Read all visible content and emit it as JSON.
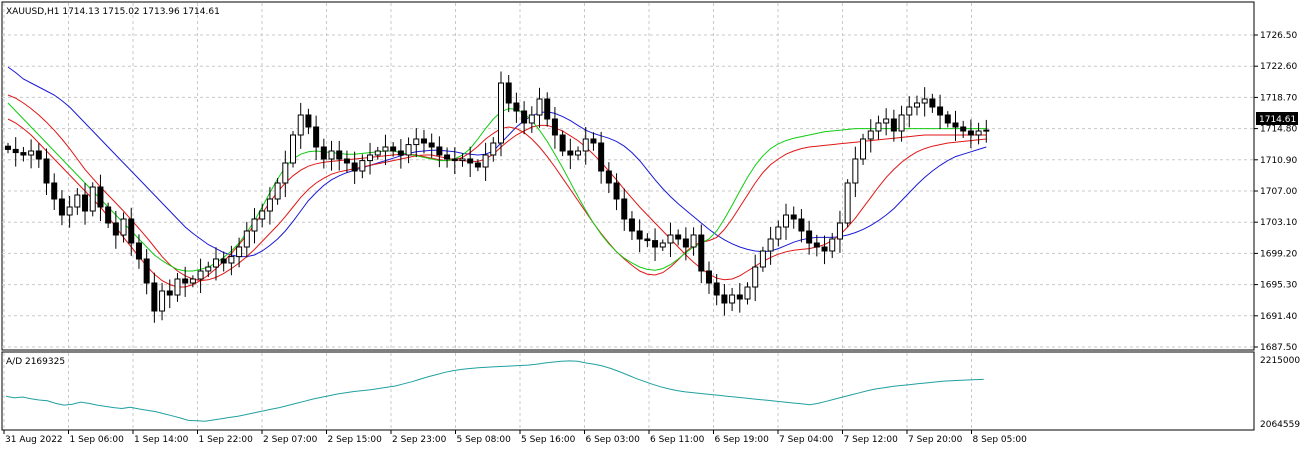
{
  "header": {
    "symbol_info": "XAUUSD,H1  1714.13 1715.02 1713.96 1714.61"
  },
  "indicator": {
    "label": "A/D 2169325"
  },
  "colors": {
    "background": "#ffffff",
    "grid": "#c8c8c8",
    "axis": "#000000",
    "candle": "#000000",
    "ma_blue": "#1a1ad6",
    "ma_red": "#e01616",
    "ma_green": "#11cc11",
    "ad_line": "#20a0a0",
    "price_label_bg": "#000000",
    "price_label_text": "#ffffff"
  },
  "chart_data": [
    {
      "type": "candlestick",
      "title": "XAUUSD,H1",
      "ylim": [
        1687.5,
        1728.5
      ],
      "y_ticks": [
        "1726.50",
        "1722.60",
        "1718.70",
        "1714.80",
        "1710.90",
        "1707.00",
        "1703.10",
        "1699.20",
        "1695.30",
        "1691.40",
        "1687.50"
      ],
      "current_price": "1714.61",
      "x_tick_labels": [
        "31 Aug 2022",
        "1 Sep 06:00",
        "1 Sep 14:00",
        "1 Sep 22:00",
        "2 Sep 07:00",
        "2 Sep 15:00",
        "2 Sep 23:00",
        "5 Sep 08:00",
        "5 Sep 16:00",
        "6 Sep 03:00",
        "6 Sep 11:00",
        "6 Sep 19:00",
        "7 Sep 04:00",
        "7 Sep 12:00",
        "7 Sep 20:00",
        "8 Sep 05:00"
      ],
      "close_path": [
        1712.2,
        1711.8,
        1711.5,
        1712.0,
        1711.0,
        1708.0,
        1706.0,
        1704.0,
        1705.0,
        1706.5,
        1704.5,
        1707.5,
        1705.0,
        1703.0,
        1701.5,
        1703.5,
        1700.5,
        1698.5,
        1695.5,
        1692.0,
        1694.5,
        1694.0,
        1696.0,
        1695.5,
        1696.0,
        1697.0,
        1697.5,
        1698.5,
        1698.0,
        1698.8,
        1700.0,
        1702.0,
        1703.5,
        1704.5,
        1706.0,
        1708.0,
        1710.5,
        1714.0,
        1716.5,
        1715.0,
        1712.5,
        1711.0,
        1712.0,
        1711.0,
        1710.5,
        1709.5,
        1710.8,
        1711.5,
        1712.0,
        1712.5,
        1712.0,
        1711.5,
        1712.8,
        1713.5,
        1713.0,
        1712.5,
        1711.5,
        1711.0,
        1710.8,
        1711.0,
        1710.5,
        1710.0,
        1711.5,
        1713.0,
        1720.5,
        1718.0,
        1717.0,
        1715.5,
        1716.5,
        1718.5,
        1716.0,
        1714.0,
        1712.0,
        1711.5,
        1712.0,
        1713.5,
        1713.0,
        1709.5,
        1708.0,
        1706.0,
        1703.5,
        1702.0,
        1701.0,
        1700.8,
        1700.0,
        1700.5,
        1701.5,
        1701.0,
        1700.0,
        1701.5,
        1697.0,
        1695.5,
        1694.0,
        1693.0,
        1694.0,
        1693.5,
        1695.0,
        1697.5,
        1699.5,
        1701.0,
        1702.5,
        1704.0,
        1703.5,
        1702.0,
        1700.5,
        1700.0,
        1699.5,
        1701.0,
        1703.0,
        1708.0,
        1711.0,
        1713.5,
        1714.5,
        1715.5,
        1716.0,
        1714.5,
        1716.5,
        1717.5,
        1718.0,
        1718.5,
        1717.5,
        1716.5,
        1715.5,
        1715.0,
        1714.5,
        1714.0,
        1714.5,
        1714.61
      ],
      "series": [
        {
          "name": "",
          "color": "#1a1ad6",
          "values": [
            1722.5,
            1721.8,
            1721.0,
            1720.5,
            1720.0,
            1719.5,
            1719.0,
            1718.3,
            1717.5,
            1716.5,
            1715.5,
            1714.5,
            1713.5,
            1712.5,
            1711.5,
            1710.5,
            1709.5,
            1708.5,
            1707.5,
            1706.5,
            1705.5,
            1704.5,
            1703.5,
            1702.5,
            1701.7,
            1701.0,
            1700.3,
            1699.8,
            1699.3,
            1699.0,
            1698.8,
            1698.8,
            1699.0,
            1699.5,
            1700.2,
            1701.0,
            1702.0,
            1703.2,
            1704.5,
            1705.8,
            1706.8,
            1707.7,
            1708.4,
            1708.9,
            1709.3,
            1709.6,
            1709.9,
            1710.2,
            1710.5,
            1710.8,
            1711.1,
            1711.4,
            1711.7,
            1711.9,
            1712.0,
            1712.1,
            1712.1,
            1712.0,
            1711.9,
            1711.7,
            1711.6,
            1711.5,
            1711.6,
            1712.0,
            1713.0,
            1714.0,
            1715.0,
            1715.8,
            1716.4,
            1716.8,
            1716.9,
            1716.7,
            1716.3,
            1715.8,
            1715.2,
            1714.6,
            1714.2,
            1713.9,
            1713.6,
            1713.2,
            1712.6,
            1711.8,
            1710.8,
            1709.6,
            1708.4,
            1707.3,
            1706.3,
            1705.4,
            1704.6,
            1703.8,
            1703.0,
            1702.2,
            1701.5,
            1700.9,
            1700.4,
            1700.0,
            1699.7,
            1699.5,
            1699.4,
            1699.5,
            1699.8,
            1700.2,
            1700.6,
            1700.9,
            1701.1,
            1701.2,
            1701.2,
            1701.2,
            1701.3,
            1701.5,
            1701.8,
            1702.2,
            1702.7,
            1703.3,
            1704.0,
            1704.8,
            1705.8,
            1706.8,
            1707.8,
            1708.7,
            1709.5,
            1710.2,
            1710.8,
            1711.3,
            1711.6,
            1711.9,
            1712.2,
            1712.5
          ]
        },
        {
          "name": "",
          "color": "#e01616",
          "values": [
            1719.0,
            1718.6,
            1718.0,
            1717.3,
            1716.5,
            1715.6,
            1714.6,
            1713.5,
            1712.3,
            1711.0,
            1709.7,
            1708.6,
            1707.5,
            1706.5,
            1705.5,
            1704.5,
            1703.4,
            1702.3,
            1701.2,
            1700.0,
            1698.8,
            1697.8,
            1697.0,
            1696.4,
            1696.0,
            1695.8,
            1695.9,
            1696.2,
            1696.7,
            1697.3,
            1698.0,
            1698.8,
            1699.7,
            1700.7,
            1701.7,
            1702.7,
            1703.8,
            1705.0,
            1706.2,
            1707.2,
            1708.0,
            1708.6,
            1709.1,
            1709.4,
            1709.6,
            1709.8,
            1710.0,
            1710.2,
            1710.4,
            1710.6,
            1710.8,
            1711.0,
            1711.2,
            1711.4,
            1711.5,
            1711.5,
            1711.3,
            1711.1,
            1710.9,
            1710.8,
            1710.7,
            1710.7,
            1711.0,
            1711.6,
            1712.5,
            1713.3,
            1714.0,
            1714.5,
            1715.0,
            1715.2,
            1715.2,
            1714.9,
            1714.5,
            1713.9,
            1713.3,
            1712.5,
            1711.6,
            1710.6,
            1709.5,
            1708.4,
            1707.2,
            1706.1,
            1705.0,
            1704.0,
            1703.0,
            1702.0,
            1701.0,
            1700.0,
            1699.0,
            1698.1,
            1697.3,
            1696.6,
            1696.1,
            1695.9,
            1696.0,
            1696.4,
            1697.0,
            1697.6,
            1698.2,
            1698.7,
            1699.1,
            1699.4,
            1699.6,
            1699.7,
            1699.8,
            1700.0,
            1700.3,
            1700.8,
            1701.5,
            1702.5,
            1703.6,
            1704.9,
            1706.2,
            1707.5,
            1708.7,
            1709.7,
            1710.6,
            1711.3,
            1711.9,
            1712.3,
            1712.6,
            1712.8,
            1713.0,
            1713.1,
            1713.2,
            1713.3,
            1713.4,
            1713.5
          ]
        },
        {
          "name": "",
          "color": "#e01616",
          "values": [
            1716.0,
            1715.5,
            1714.8,
            1714.0,
            1713.0,
            1712.0,
            1711.0,
            1710.0,
            1709.0,
            1708.0,
            1707.0,
            1706.0,
            1705.0,
            1703.8,
            1702.5,
            1701.2,
            1700.0,
            1698.8,
            1697.6,
            1696.6,
            1695.8,
            1695.3,
            1695.0,
            1695.0,
            1695.3,
            1695.8,
            1696.5,
            1697.3,
            1698.2,
            1699.2,
            1700.3,
            1701.5,
            1702.8,
            1704.2,
            1705.6,
            1706.9,
            1708.0,
            1708.9,
            1709.6,
            1710.1,
            1710.4,
            1710.6,
            1710.7,
            1710.8,
            1710.9,
            1711.0,
            1711.1,
            1711.2,
            1711.3,
            1711.4,
            1711.5,
            1711.6,
            1711.6,
            1711.5,
            1711.3,
            1711.1,
            1710.9,
            1710.8,
            1710.9,
            1711.2,
            1711.8,
            1712.6,
            1713.5,
            1714.2,
            1714.8,
            1715.0,
            1714.8,
            1714.3,
            1713.5,
            1712.5,
            1711.3,
            1710.0,
            1708.6,
            1707.2,
            1705.8,
            1704.4,
            1703.0,
            1701.7,
            1700.5,
            1699.4,
            1698.5,
            1697.7,
            1697.0,
            1696.6,
            1696.5,
            1696.8,
            1697.5,
            1698.4,
            1699.4,
            1700.2,
            1700.6,
            1700.8,
            1701.2,
            1702.2,
            1703.5,
            1705.0,
            1706.5,
            1708.0,
            1709.3,
            1710.3,
            1711.0,
            1711.6,
            1712.0,
            1712.3,
            1712.5,
            1712.6,
            1712.7,
            1712.8,
            1712.9,
            1713.0,
            1713.1,
            1713.2,
            1713.3,
            1713.4,
            1713.5,
            1713.6,
            1713.7,
            1713.8,
            1713.9,
            1714.0,
            1714.0,
            1714.0,
            1714.0,
            1714.0,
            1714.0,
            1714.0,
            1714.0,
            1714.0
          ]
        },
        {
          "name": "",
          "color": "#11cc11",
          "values": [
            1718.0,
            1717.0,
            1716.0,
            1715.0,
            1714.0,
            1713.0,
            1712.0,
            1711.0,
            1710.0,
            1709.0,
            1708.0,
            1707.0,
            1706.0,
            1705.0,
            1704.0,
            1703.0,
            1702.0,
            1701.0,
            1700.0,
            1699.0,
            1698.3,
            1697.7,
            1697.2,
            1697.0,
            1697.0,
            1697.2,
            1697.5,
            1698.0,
            1698.7,
            1699.5,
            1700.5,
            1701.8,
            1703.3,
            1705.0,
            1706.8,
            1708.5,
            1710.0,
            1711.0,
            1711.6,
            1711.9,
            1712.0,
            1711.9,
            1711.8,
            1711.7,
            1711.6,
            1711.6,
            1711.7,
            1711.8,
            1711.9,
            1712.0,
            1712.0,
            1711.8,
            1711.6,
            1711.4,
            1711.2,
            1711.0,
            1710.8,
            1710.8,
            1711.0,
            1711.5,
            1712.3,
            1713.5,
            1714.8,
            1716.0,
            1716.9,
            1717.3,
            1717.2,
            1716.7,
            1715.8,
            1714.6,
            1713.2,
            1711.6,
            1709.9,
            1708.1,
            1706.3,
            1704.6,
            1703.0,
            1701.6,
            1700.4,
            1699.4,
            1698.6,
            1698.0,
            1697.5,
            1697.2,
            1697.1,
            1697.3,
            1697.8,
            1698.5,
            1699.3,
            1700.0,
            1700.5,
            1701.0,
            1702.0,
            1703.5,
            1705.2,
            1707.0,
            1708.7,
            1710.2,
            1711.4,
            1712.3,
            1712.9,
            1713.3,
            1713.6,
            1713.8,
            1714.0,
            1714.2,
            1714.4,
            1714.5,
            1714.6,
            1714.7,
            1714.8,
            1714.8,
            1714.8,
            1714.8,
            1714.8,
            1714.8,
            1714.8,
            1714.8,
            1714.8,
            1714.8,
            1714.8,
            1714.8,
            1714.8,
            1714.8,
            1714.8,
            1714.8,
            1714.8,
            1714.8
          ]
        }
      ]
    },
    {
      "type": "line",
      "title": "A/D 2169325",
      "ylim": [
        2064559,
        2215000
      ],
      "y_ticks": [
        "2215000",
        "2064559"
      ],
      "series": [
        {
          "name": "A/D",
          "color": "#20a0a0",
          "values": [
            2130000,
            2126000,
            2128000,
            2124000,
            2121000,
            2119000,
            2113000,
            2109000,
            2111000,
            2116000,
            2113000,
            2109000,
            2106000,
            2103000,
            2101000,
            2104000,
            2100000,
            2097000,
            2094000,
            2089000,
            2084000,
            2079000,
            2073000,
            2072000,
            2071000,
            2074000,
            2077000,
            2080000,
            2083000,
            2087000,
            2091000,
            2095000,
            2099000,
            2103000,
            2108000,
            2113000,
            2118000,
            2123000,
            2127000,
            2131000,
            2135000,
            2138000,
            2141000,
            2143000,
            2145000,
            2148000,
            2151000,
            2154000,
            2159000,
            2164000,
            2170000,
            2176000,
            2181000,
            2186000,
            2190000,
            2193000,
            2195000,
            2197000,
            2198000,
            2199000,
            2200000,
            2201000,
            2202000,
            2203000,
            2205000,
            2208000,
            2210000,
            2212000,
            2213000,
            2212000,
            2208000,
            2205000,
            2201000,
            2195000,
            2188000,
            2180000,
            2172000,
            2165000,
            2158000,
            2152000,
            2147000,
            2143000,
            2140000,
            2138000,
            2136000,
            2134000,
            2132000,
            2130000,
            2128000,
            2126000,
            2124000,
            2122000,
            2120000,
            2118000,
            2116000,
            2114000,
            2112000,
            2110000,
            2113000,
            2118000,
            2123000,
            2128000,
            2133000,
            2138000,
            2143000,
            2147000,
            2150000,
            2153000,
            2155000,
            2157000,
            2159000,
            2161000,
            2163000,
            2165000,
            2166000,
            2167000,
            2168000,
            2169000,
            2169325
          ]
        }
      ]
    }
  ]
}
